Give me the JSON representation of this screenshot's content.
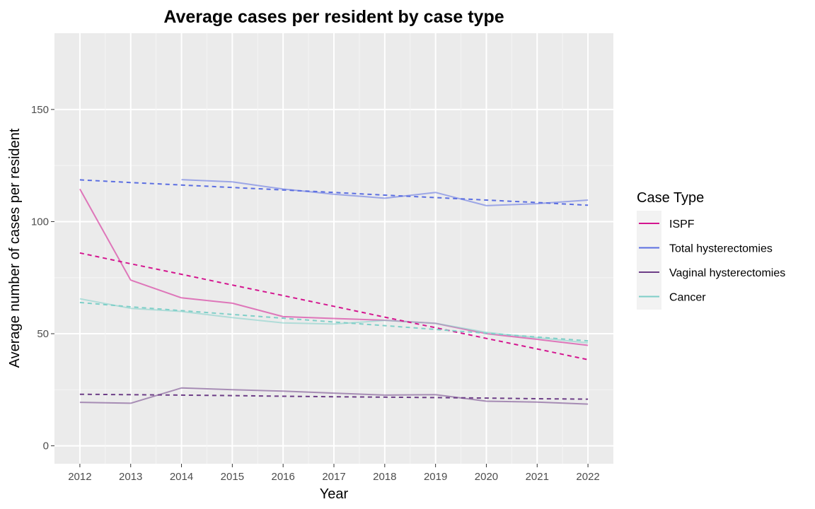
{
  "chart_data": {
    "type": "line",
    "title": "Average cases per resident by case type",
    "xlabel": "Year",
    "ylabel": "Average number of cases per resident",
    "x": [
      2012,
      2013,
      2014,
      2015,
      2016,
      2017,
      2018,
      2019,
      2020,
      2021,
      2022
    ],
    "xlim": [
      2011.5,
      2022.5
    ],
    "ylim": [
      -8,
      184
    ],
    "yticks": [
      0,
      50,
      100,
      150
    ],
    "grid": true,
    "legend": {
      "title": "Case Type",
      "position": "right",
      "entries": [
        "ISPF",
        "Total hysterectomies",
        "Vaginal hysterectomies",
        "Cancer"
      ]
    },
    "series": [
      {
        "name": "ISPF",
        "color": "#d4158f",
        "values": [
          114.5,
          73.9,
          66.0,
          63.6,
          57.6,
          56.8,
          56.0,
          54.6,
          50.0,
          47.5,
          44.8
        ],
        "trend": [
          86.0,
          81.2,
          76.5,
          71.7,
          67.0,
          62.2,
          57.4,
          52.7,
          47.9,
          43.2,
          38.4
        ]
      },
      {
        "name": "Total hysterectomies",
        "color": "#5b6ee1",
        "values": [
          null,
          null,
          118.7,
          117.7,
          114.5,
          112.2,
          110.4,
          113.0,
          107.1,
          108.0,
          109.6
        ],
        "trend": [
          118.6,
          117.4,
          116.3,
          115.2,
          114.1,
          113.0,
          111.8,
          110.7,
          109.6,
          108.5,
          107.3
        ]
      },
      {
        "name": "Vaginal hysterectomies",
        "color": "#6d3e87",
        "values": [
          19.4,
          19.0,
          25.8,
          25.0,
          24.4,
          23.5,
          22.6,
          22.8,
          19.9,
          19.5,
          18.6
        ],
        "trend": [
          23.0,
          22.8,
          22.6,
          22.4,
          22.1,
          21.9,
          21.7,
          21.5,
          21.3,
          21.0,
          20.8
        ]
      },
      {
        "name": "Cancer",
        "color": "#7fcfc8",
        "values": [
          65.6,
          61.3,
          59.9,
          57.2,
          54.8,
          54.3,
          55.9,
          54.6,
          50.6,
          48.2,
          45.9
        ],
        "trend": [
          63.9,
          62.0,
          60.3,
          58.6,
          56.9,
          55.2,
          53.6,
          51.9,
          50.2,
          48.5,
          46.8
        ]
      }
    ]
  }
}
